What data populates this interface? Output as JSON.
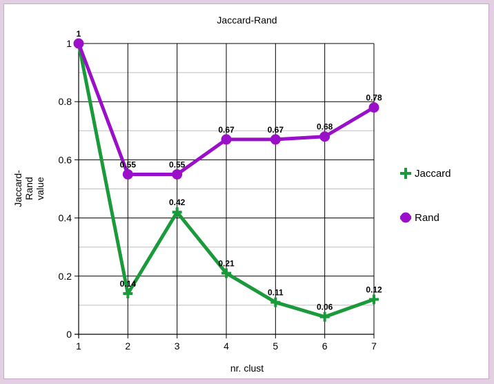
{
  "chart_data": {
    "type": "line",
    "title": "Jaccard-Rand",
    "xlabel": "nr. clust",
    "ylabel": [
      "Jaccard-",
      "Rand",
      "value"
    ],
    "x": [
      1,
      2,
      3,
      4,
      5,
      6,
      7
    ],
    "xlim": [
      1,
      7
    ],
    "ylim": [
      0,
      1
    ],
    "y_ticks": [
      0,
      0.2,
      0.4,
      0.6,
      0.8,
      1
    ],
    "y_tick_labels": [
      "0",
      "0.2",
      "0.4",
      "0.6",
      "0.8",
      "1"
    ],
    "grid": true,
    "legend_position": "right",
    "series": [
      {
        "name": "Jaccard",
        "values": [
          1,
          0.14,
          0.42,
          0.21,
          0.11,
          0.06,
          0.12
        ],
        "labels": [
          "",
          "0.14",
          "0.42",
          "0.21",
          "0.11",
          "0.06",
          "0.12"
        ],
        "color": "#1a9a3a",
        "marker": "plus"
      },
      {
        "name": "Rand",
        "values": [
          1,
          0.55,
          0.55,
          0.67,
          0.67,
          0.68,
          0.78
        ],
        "labels": [
          "1",
          "0.55",
          "0.55",
          "0.67",
          "0.67",
          "0.68",
          "0.78"
        ],
        "color": "#9a10c8",
        "marker": "circle"
      }
    ]
  }
}
